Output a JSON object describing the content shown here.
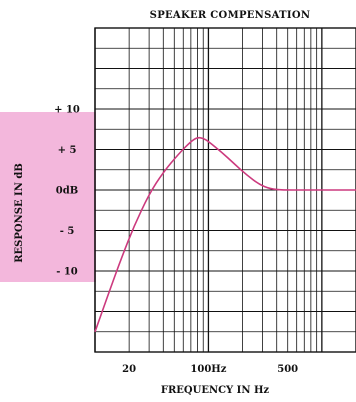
{
  "chart_data": {
    "type": "line",
    "title": "SPEAKER COMPENSATION",
    "xlabel": "FREQUENCY IN Hz",
    "ylabel": "RESPONSE IN dB",
    "x_scale": "log",
    "xlim": [
      10,
      2000
    ],
    "ylim": [
      -20,
      20
    ],
    "x_ticks": [
      {
        "value": 20,
        "label": "20"
      },
      {
        "value": 100,
        "label": "100Hz"
      },
      {
        "value": 500,
        "label": "500"
      }
    ],
    "y_ticks": [
      {
        "value": 10,
        "label": "+ 10"
      },
      {
        "value": 5,
        "label": "+ 5"
      },
      {
        "value": 0,
        "label": "0dB"
      },
      {
        "value": -5,
        "label": "- 5"
      },
      {
        "value": -10,
        "label": "- 10"
      }
    ],
    "grid": true,
    "series": [
      {
        "color": "#cc3a7e",
        "points": [
          [
            10,
            -17.5
          ],
          [
            13,
            -13
          ],
          [
            17,
            -8.5
          ],
          [
            22,
            -4.5
          ],
          [
            30,
            -0.5
          ],
          [
            40,
            2.2
          ],
          [
            55,
            4.5
          ],
          [
            70,
            6.0
          ],
          [
            80,
            6.5
          ],
          [
            90,
            6.4
          ],
          [
            100,
            6.0
          ],
          [
            130,
            4.7
          ],
          [
            170,
            3.2
          ],
          [
            220,
            1.8
          ],
          [
            280,
            0.7
          ],
          [
            350,
            0.15
          ],
          [
            450,
            0
          ],
          [
            700,
            0
          ],
          [
            2000,
            0
          ]
        ]
      }
    ],
    "ylabel_band_color": "#f3b7dc",
    "grid_color": "#111111"
  }
}
